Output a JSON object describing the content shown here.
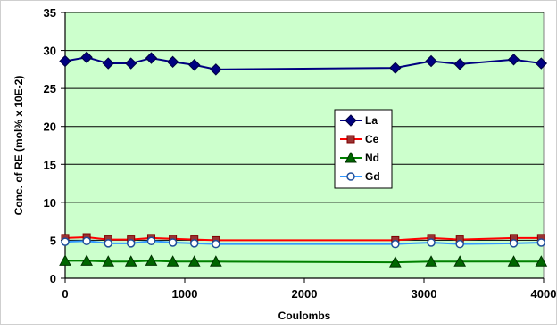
{
  "chart_data": {
    "type": "line",
    "title": "",
    "xlabel": "Coulombs",
    "ylabel": "Conc. of RE (mol% x 10E-2)",
    "xlim": [
      0,
      4000
    ],
    "ylim": [
      0,
      35
    ],
    "x_ticks": [
      "0",
      "1000",
      "2000",
      "3000",
      "4000"
    ],
    "y_ticks": [
      "0",
      "5",
      "10",
      "15",
      "20",
      "25",
      "30",
      "35"
    ],
    "grid": "horizontal",
    "legend_position": "center-right",
    "plot_background": "#ccffcc",
    "x": [
      0,
      180,
      360,
      550,
      720,
      900,
      1080,
      1260,
      2760,
      3060,
      3300,
      3750,
      3980
    ],
    "series": [
      {
        "name": "La",
        "color": "#000080",
        "marker": "diamond",
        "values": [
          28.6,
          29.1,
          28.3,
          28.3,
          29.0,
          28.5,
          28.1,
          27.5,
          27.7,
          28.6,
          28.2,
          28.8,
          28.3
        ]
      },
      {
        "name": "Ce",
        "color": "#ff0000",
        "marker": "square",
        "values": [
          5.3,
          5.4,
          5.1,
          5.1,
          5.3,
          5.2,
          5.1,
          5.0,
          5.0,
          5.3,
          5.1,
          5.3,
          5.3
        ]
      },
      {
        "name": "Nd",
        "color": "#008000",
        "marker": "triangle",
        "values": [
          2.3,
          2.3,
          2.2,
          2.2,
          2.3,
          2.2,
          2.2,
          2.2,
          2.1,
          2.2,
          2.2,
          2.2,
          2.2
        ]
      },
      {
        "name": "Gd",
        "color": "#3399ff",
        "marker": "circle",
        "values": [
          4.8,
          4.9,
          4.6,
          4.6,
          4.9,
          4.7,
          4.6,
          4.5,
          4.5,
          4.7,
          4.5,
          4.6,
          4.7
        ]
      }
    ]
  }
}
